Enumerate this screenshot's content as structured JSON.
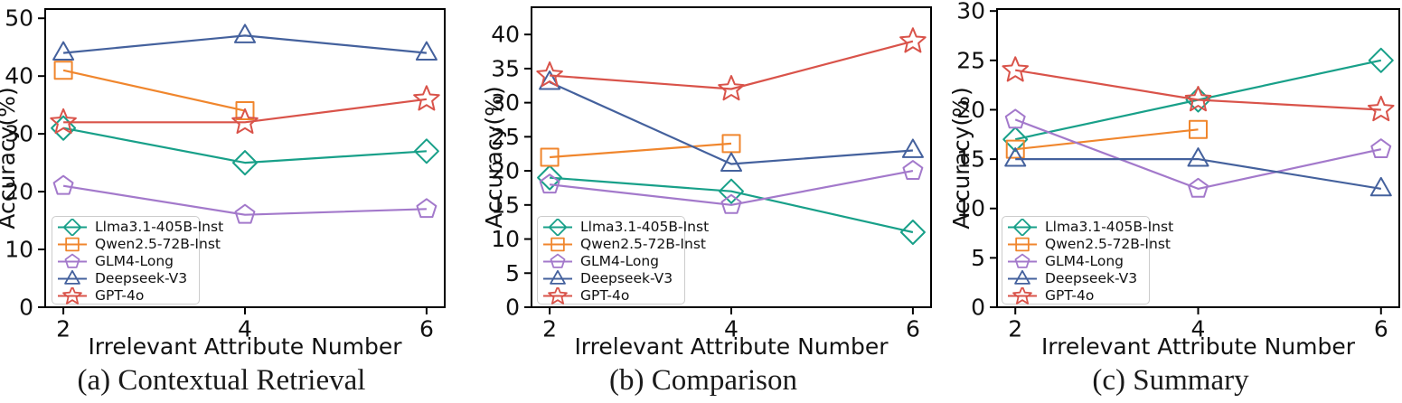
{
  "background_color": "#ffffff",
  "axis_color": "#000000",
  "legend_border_color": "#cccccc",
  "chart_data": [
    {
      "type": "line",
      "title": "(a) Contextual Retrieval",
      "xlabel": "Irrelevant Attribute Number",
      "ylabel": "Accuracy(%)",
      "x": [
        2,
        4,
        6
      ],
      "x_ticks": [
        2,
        4,
        6
      ],
      "y_ticks": [
        0,
        10,
        20,
        30,
        40,
        50
      ],
      "xlim": [
        1.8,
        6.2
      ],
      "ylim": [
        0,
        51.6
      ],
      "grid": false,
      "legend_position": "lower left",
      "series": [
        {
          "name": "Llma3.1-405B-Inst",
          "marker": "diamond",
          "color": "#18a089",
          "values": [
            31,
            25,
            27
          ]
        },
        {
          "name": "Qwen2.5-72B-Inst",
          "marker": "square",
          "color": "#f0862d",
          "values": [
            41,
            34,
            null
          ]
        },
        {
          "name": "GLM4-Long",
          "marker": "pentagon",
          "color": "#a379cb",
          "values": [
            21,
            16,
            17
          ]
        },
        {
          "name": "Deepseek-V3",
          "marker": "triangle",
          "color": "#44619d",
          "values": [
            44,
            47,
            44
          ]
        },
        {
          "name": "GPT-4o",
          "marker": "star",
          "color": "#d9534a",
          "values": [
            32,
            32,
            36
          ]
        }
      ]
    },
    {
      "type": "line",
      "title": "(b) Comparison",
      "xlabel": "Irrelevant Attribute Number",
      "ylabel": "Accuracy(%)",
      "x": [
        2,
        4,
        6
      ],
      "x_ticks": [
        2,
        4,
        6
      ],
      "y_ticks": [
        0,
        5,
        10,
        15,
        20,
        25,
        30,
        35,
        40
      ],
      "xlim": [
        1.8,
        6.2
      ],
      "ylim": [
        0,
        44
      ],
      "grid": false,
      "legend_position": "lower left",
      "series": [
        {
          "name": "Llma3.1-405B-Inst",
          "marker": "diamond",
          "color": "#18a089",
          "values": [
            19,
            17,
            11
          ]
        },
        {
          "name": "Qwen2.5-72B-Inst",
          "marker": "square",
          "color": "#f0862d",
          "values": [
            22,
            24,
            null
          ]
        },
        {
          "name": "GLM4-Long",
          "marker": "pentagon",
          "color": "#a379cb",
          "values": [
            18,
            15,
            20
          ]
        },
        {
          "name": "Deepseek-V3",
          "marker": "triangle",
          "color": "#44619d",
          "values": [
            33,
            21,
            23
          ]
        },
        {
          "name": "GPT-4o",
          "marker": "star",
          "color": "#d9534a",
          "values": [
            34,
            32,
            39
          ]
        }
      ]
    },
    {
      "type": "line",
      "title": "(c) Summary",
      "xlabel": "Irrelevant Attribute Number",
      "ylabel": "Accuracy(%)",
      "x": [
        2,
        4,
        6
      ],
      "x_ticks": [
        2,
        4,
        6
      ],
      "y_ticks": [
        0,
        5,
        10,
        15,
        20,
        25,
        30
      ],
      "xlim": [
        1.8,
        6.2
      ],
      "ylim": [
        0,
        30.2
      ],
      "grid": false,
      "legend_position": "lower left",
      "series": [
        {
          "name": "Llma3.1-405B-Inst",
          "marker": "diamond",
          "color": "#18a089",
          "values": [
            17,
            21,
            25
          ]
        },
        {
          "name": "Qwen2.5-72B-Inst",
          "marker": "square",
          "color": "#f0862d",
          "values": [
            16,
            18,
            null
          ]
        },
        {
          "name": "GLM4-Long",
          "marker": "pentagon",
          "color": "#a379cb",
          "values": [
            19,
            12,
            16
          ]
        },
        {
          "name": "Deepseek-V3",
          "marker": "triangle",
          "color": "#44619d",
          "values": [
            15,
            15,
            12
          ]
        },
        {
          "name": "GPT-4o",
          "marker": "star",
          "color": "#d9534a",
          "values": [
            24,
            21,
            20
          ]
        }
      ]
    }
  ]
}
